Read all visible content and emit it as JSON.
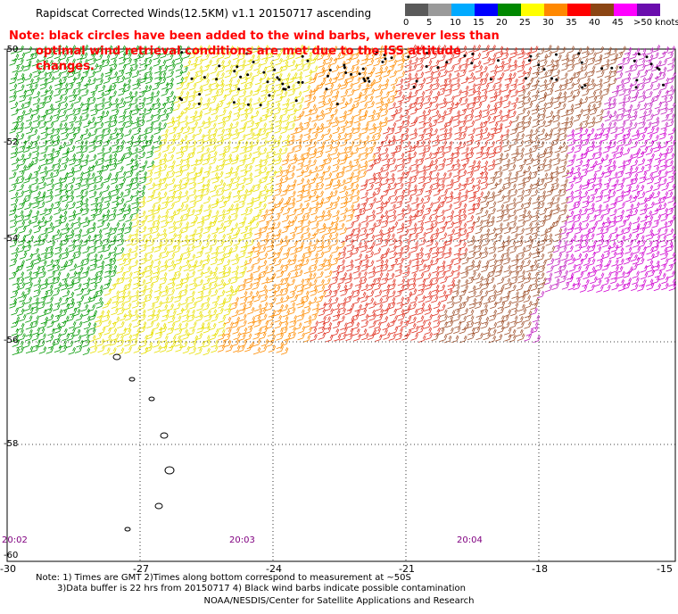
{
  "title": "Rapidscat Corrected Winds(12.5KM) v1.1 20150717 ascending",
  "note": {
    "line1": "Note: black circles have been added to the wind barbs, wherever less than",
    "line2": "optimal wind retrieval conditions are met due to the ISS attitude changes."
  },
  "legend": {
    "labels": [
      "0",
      "5",
      "10",
      "15",
      "20",
      "25",
      "30",
      "35",
      "40",
      "45",
      ">50 knots"
    ],
    "colors": [
      "#5a5a5a",
      "#9a9a9a",
      "#00aaff",
      "#0000ff",
      "#008800",
      "#ffff00",
      "#ff8800",
      "#ff0000",
      "#8b4513",
      "#ff00ff",
      "#6a0dad"
    ]
  },
  "axes": {
    "x_ticks": [
      "-30",
      "-27",
      "-24",
      "-21",
      "-18",
      "-15"
    ],
    "y_ticks": [
      "-50",
      "-52",
      "-54",
      "-56",
      "-58",
      "-60"
    ]
  },
  "times": [
    "20:02",
    "20:03",
    "20:04"
  ],
  "footnote": {
    "line1": "Note: 1) Times are GMT 2)Times along bottom correspond to measurement at ~50S",
    "line2": "3)Data buffer is 22 hrs from 20150717 4) Black wind barbs indicate possible contamination"
  },
  "credit": "NOAA/NESDIS/Center for Satellite Applications and Research"
}
